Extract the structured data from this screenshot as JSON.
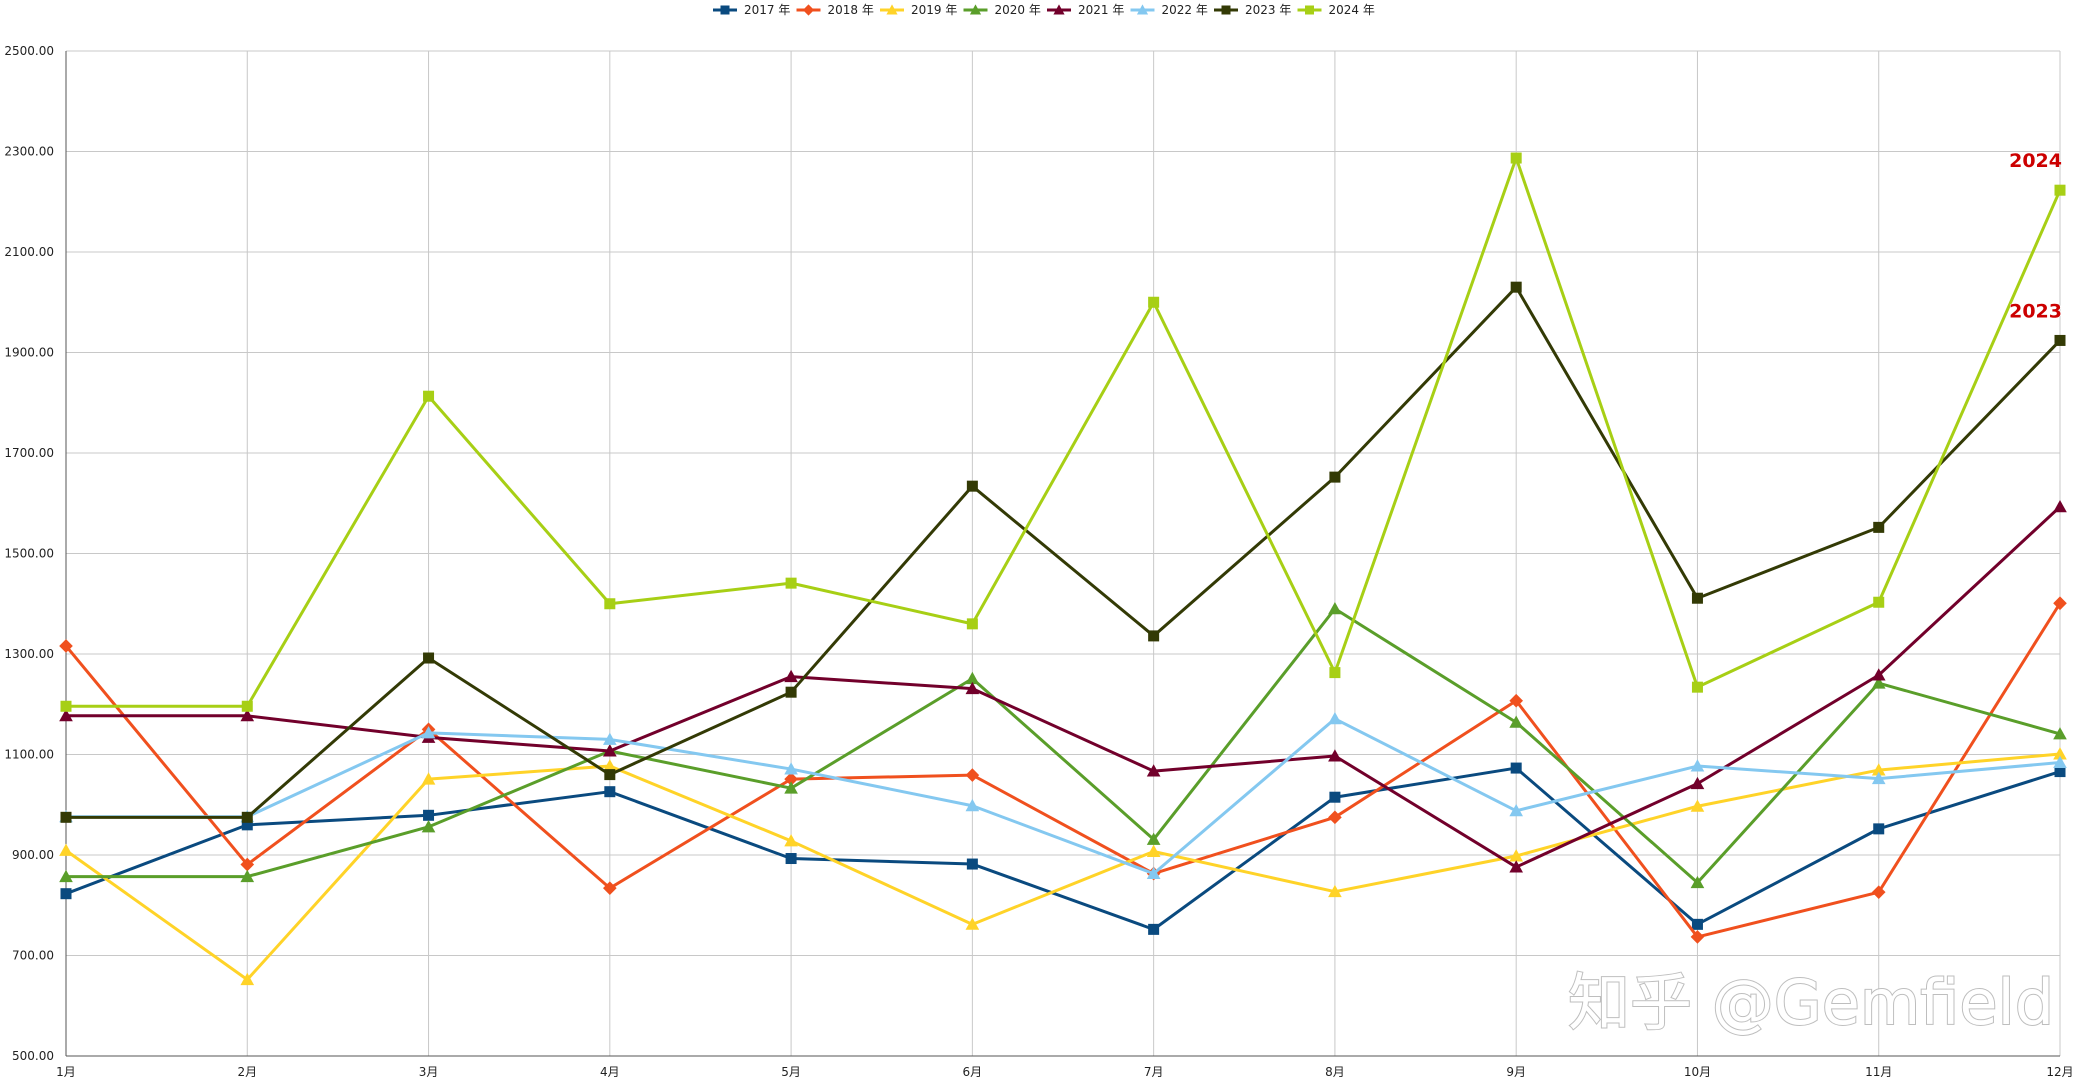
{
  "chart_data": {
    "type": "line",
    "title": "",
    "xlabel": "",
    "ylabel": "",
    "categories": [
      "1月",
      "2月",
      "3月",
      "4月",
      "5月",
      "6月",
      "7月",
      "8月",
      "9月",
      "10月",
      "11月",
      "12月"
    ],
    "ylim": [
      500,
      2500
    ],
    "yticks": [
      "500.00",
      "700.00",
      "900.00",
      "1100.00",
      "1300.00",
      "1500.00",
      "1700.00",
      "1900.00",
      "2100.00",
      "2300.00",
      "2500.00"
    ],
    "ytick_values": [
      500,
      700,
      900,
      1100,
      1300,
      1500,
      1700,
      1900,
      2100,
      2300,
      2500
    ],
    "grid": true,
    "legend_position": "top-center",
    "series": [
      {
        "name": "2017 年",
        "color": "#0a4a7f",
        "marker": "square",
        "values": [
          823,
          960,
          979,
          1026,
          893,
          882,
          752,
          1015,
          1073,
          762,
          952,
          1066
        ]
      },
      {
        "name": "2018 年",
        "color": "#f0501e",
        "marker": "diamond",
        "values": [
          1316,
          881,
          1150,
          834,
          1051,
          1059,
          863,
          975,
          1207,
          737,
          826,
          1401
        ]
      },
      {
        "name": "2019 年",
        "color": "#ffd328",
        "marker": "triangle",
        "values": [
          909,
          652,
          1051,
          1077,
          928,
          762,
          907,
          827,
          898,
          997,
          1069,
          1101
        ]
      },
      {
        "name": "2020 年",
        "color": "#5a9e2a",
        "marker": "triangle",
        "values": [
          857,
          857,
          956,
          1107,
          1033,
          1251,
          931,
          1390,
          1164,
          845,
          1242,
          1141
        ]
      },
      {
        "name": "2021 年",
        "color": "#72002b",
        "marker": "triangle",
        "values": [
          1177,
          1177,
          1134,
          1107,
          1255,
          1231,
          1067,
          1097,
          876,
          1042,
          1258,
          1593
        ]
      },
      {
        "name": "2022 年",
        "color": "#84c8f0",
        "marker": "triangle",
        "values": [
          976,
          976,
          1143,
          1130,
          1071,
          998,
          863,
          1171,
          988,
          1077,
          1052,
          1084
        ]
      },
      {
        "name": "2023 年",
        "color": "#333a05",
        "marker": "square",
        "values": [
          975,
          975,
          1292,
          1060,
          1224,
          1634,
          1336,
          1652,
          2030,
          1411,
          1552,
          1924
        ]
      },
      {
        "name": "2024 年",
        "color": "#a7cf15",
        "marker": "square",
        "values": [
          1196,
          1196,
          1813,
          1400,
          1441,
          1360,
          2000,
          1263,
          2287,
          1234,
          1403,
          2223
        ]
      }
    ],
    "annotations": [
      {
        "text": "2024",
        "series": "2024 年",
        "category": "12月"
      },
      {
        "text": "2023",
        "series": "2023 年",
        "category": "12月"
      }
    ]
  },
  "watermark": "知乎 @Gemfield"
}
